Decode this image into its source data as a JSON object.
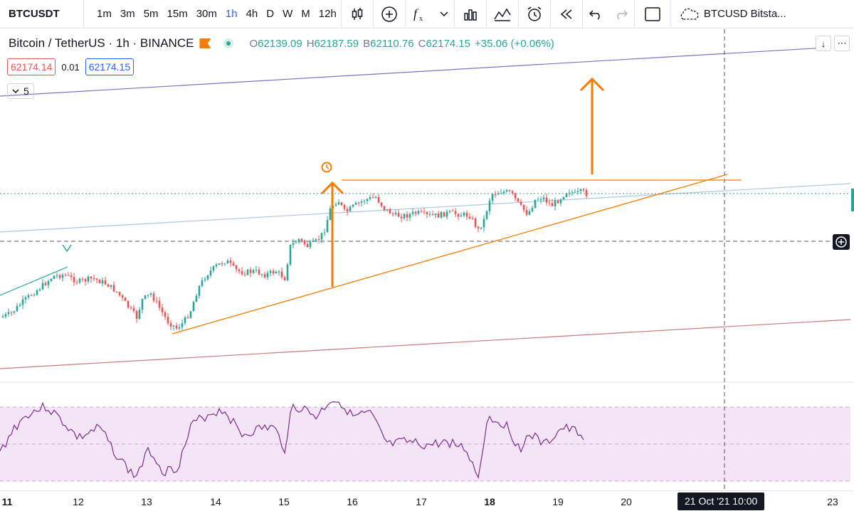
{
  "toolbar": {
    "symbol": "BTCUSDT",
    "intervals": [
      {
        "label": "1m",
        "active": false
      },
      {
        "label": "3m",
        "active": false
      },
      {
        "label": "5m",
        "active": false
      },
      {
        "label": "15m",
        "active": false
      },
      {
        "label": "30m",
        "active": false
      },
      {
        "label": "1h",
        "active": true
      },
      {
        "label": "4h",
        "active": false
      },
      {
        "label": "D",
        "active": false
      },
      {
        "label": "W",
        "active": false
      },
      {
        "label": "M",
        "active": false
      },
      {
        "label": "12h",
        "active": false
      }
    ],
    "icons": [
      "chevron-down-icon",
      "candles-icon",
      "add-compare-icon",
      "indicators-icon",
      "chevron-down-icon",
      "bar-chart-icon",
      "templates-icon",
      "alert-icon",
      "replay-icon",
      "undo-icon",
      "redo-icon",
      "layout-icon",
      "cloud-icon"
    ],
    "compare_label": "BTCUSD Bitsta..."
  },
  "legend": {
    "title": "Bitcoin / TetherUS · 1h · BINANCE",
    "open_key": "O",
    "open": "62139.09",
    "high_key": "H",
    "high": "62187.59",
    "low_key": "B",
    "low": "62110.76",
    "close_key": "C",
    "close": "62174.15",
    "change": "+35.06 (+0.06%)"
  },
  "prices": {
    "sell": "62174.14",
    "spread": "0.01",
    "buy": "62174.15"
  },
  "indicators_collapsed": {
    "count": "5"
  },
  "xaxis": {
    "labels": [
      {
        "text": "11",
        "bold": true
      },
      {
        "text": "12",
        "bold": false
      },
      {
        "text": "13",
        "bold": false
      },
      {
        "text": "14",
        "bold": false
      },
      {
        "text": "15",
        "bold": false
      },
      {
        "text": "16",
        "bold": false
      },
      {
        "text": "17",
        "bold": false
      },
      {
        "text": "18",
        "bold": true
      },
      {
        "text": "19",
        "bold": false
      },
      {
        "text": "20",
        "bold": false
      },
      {
        "text": "23",
        "bold": false
      }
    ],
    "crosshair_label": "21 Oct '21   10:00"
  },
  "colors": {
    "up": "#26a69a",
    "down": "#ef5350",
    "drawing": "#f57c00",
    "trend_blue": "#aec8e0",
    "trend_purple": "#7e72c4",
    "trend_red": "#c77b7b",
    "rsi_line": "#7b2d8e",
    "rsi_band": "#f3e5f5"
  }
}
